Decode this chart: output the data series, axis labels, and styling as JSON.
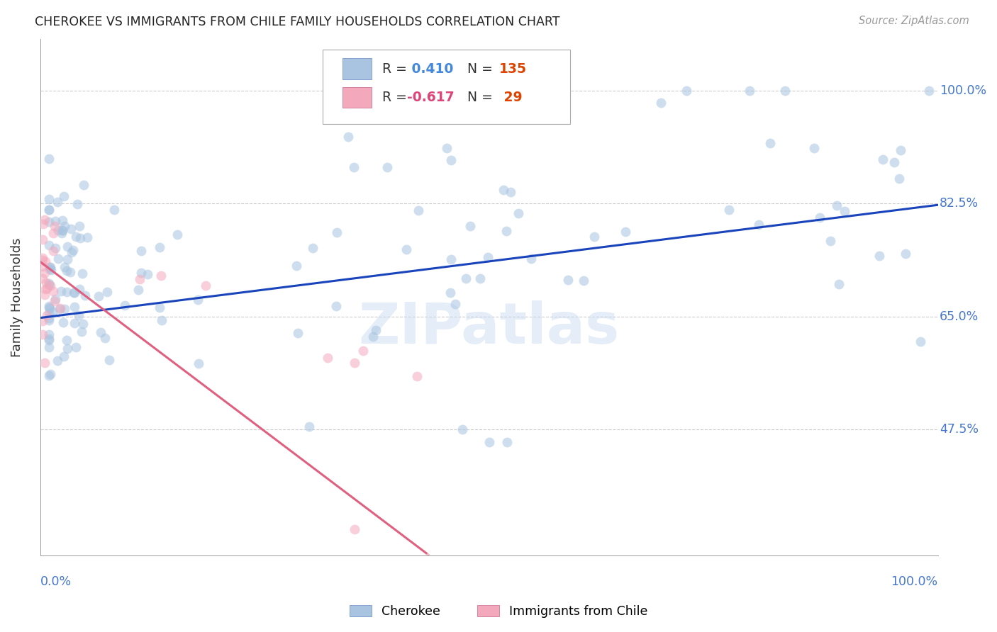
{
  "title": "CHEROKEE VS IMMIGRANTS FROM CHILE FAMILY HOUSEHOLDS CORRELATION CHART",
  "source": "Source: ZipAtlas.com",
  "ylabel": "Family Households",
  "watermark": "ZIPatlas",
  "cherokee_color": "#a8c4e0",
  "chile_color": "#f4a8bc",
  "cherokee_line_color": "#1a44bb",
  "chile_line_color": "#e06080",
  "background_color": "#ffffff",
  "grid_color": "#cccccc",
  "title_color": "#222222",
  "axis_label_color": "#4477cc",
  "r_value_color_blue": "#4488dd",
  "r_value_color_pink": "#dd4477",
  "n_value_color_blue": "#dd4400",
  "n_value_color_pink": "#dd4400",
  "cherokee_R": 0.41,
  "cherokee_N": 135,
  "chile_R": -0.617,
  "chile_N": 29,
  "marker_size": 100,
  "marker_alpha": 0.55,
  "line_width": 2.2,
  "xlim": [
    0.0,
    1.0
  ],
  "ylim": [
    0.28,
    1.08
  ],
  "yticks": [
    0.475,
    0.65,
    0.825,
    1.0
  ],
  "ytick_labels": [
    "47.5%",
    "65.0%",
    "82.5%",
    "100.0%"
  ]
}
